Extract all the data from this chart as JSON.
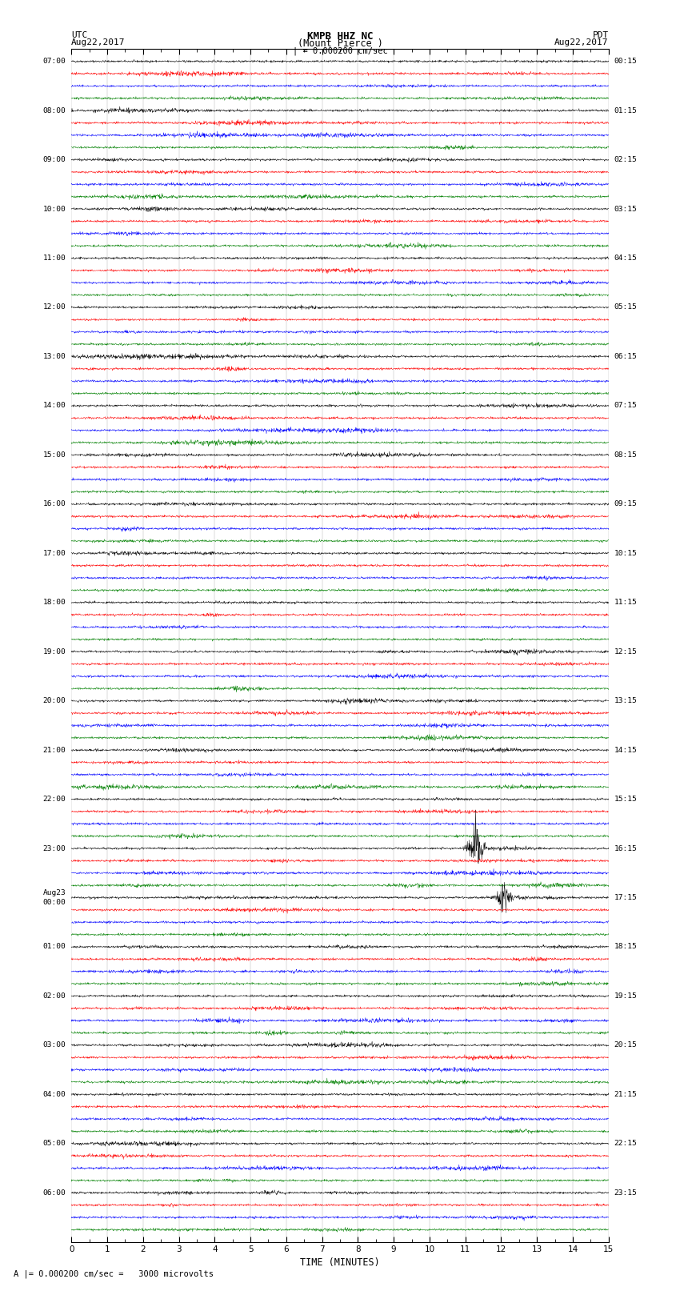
{
  "title_line1": "KMPB HHZ NC",
  "title_line2": "(Mount Pierce )",
  "scale_text": "| = 0.000200 cm/sec",
  "left_header1": "UTC",
  "left_header2": "Aug22,2017",
  "right_header1": "PDT",
  "right_header2": "Aug22,2017",
  "bottom_label": "TIME (MINUTES)",
  "footnote": "A |= 0.000200 cm/sec =   3000 microvolts",
  "x_min": 0,
  "x_max": 15,
  "colors": [
    "black",
    "red",
    "blue",
    "green"
  ],
  "bg_color": "white",
  "trace_amp": 0.12,
  "noise_seed": 42,
  "n_points": 1800,
  "utc_hour_labels": [
    "07:00",
    "08:00",
    "09:00",
    "10:00",
    "11:00",
    "12:00",
    "13:00",
    "14:00",
    "15:00",
    "16:00",
    "17:00",
    "18:00",
    "19:00",
    "20:00",
    "21:00",
    "22:00",
    "23:00",
    "Aug23\n00:00",
    "01:00",
    "02:00",
    "03:00",
    "04:00",
    "05:00",
    "06:00"
  ],
  "pdt_hour_labels": [
    "00:15",
    "01:15",
    "02:15",
    "03:15",
    "04:15",
    "05:15",
    "06:15",
    "07:15",
    "08:15",
    "09:15",
    "10:15",
    "11:15",
    "12:15",
    "13:15",
    "14:15",
    "15:15",
    "16:15",
    "17:15",
    "18:15",
    "19:15",
    "20:15",
    "21:15",
    "22:15",
    "23:15"
  ],
  "n_hours": 24,
  "traces_per_hour": 4,
  "border_color": "black",
  "grid_color": "#aaaaaa",
  "grid_lw": 0.3
}
